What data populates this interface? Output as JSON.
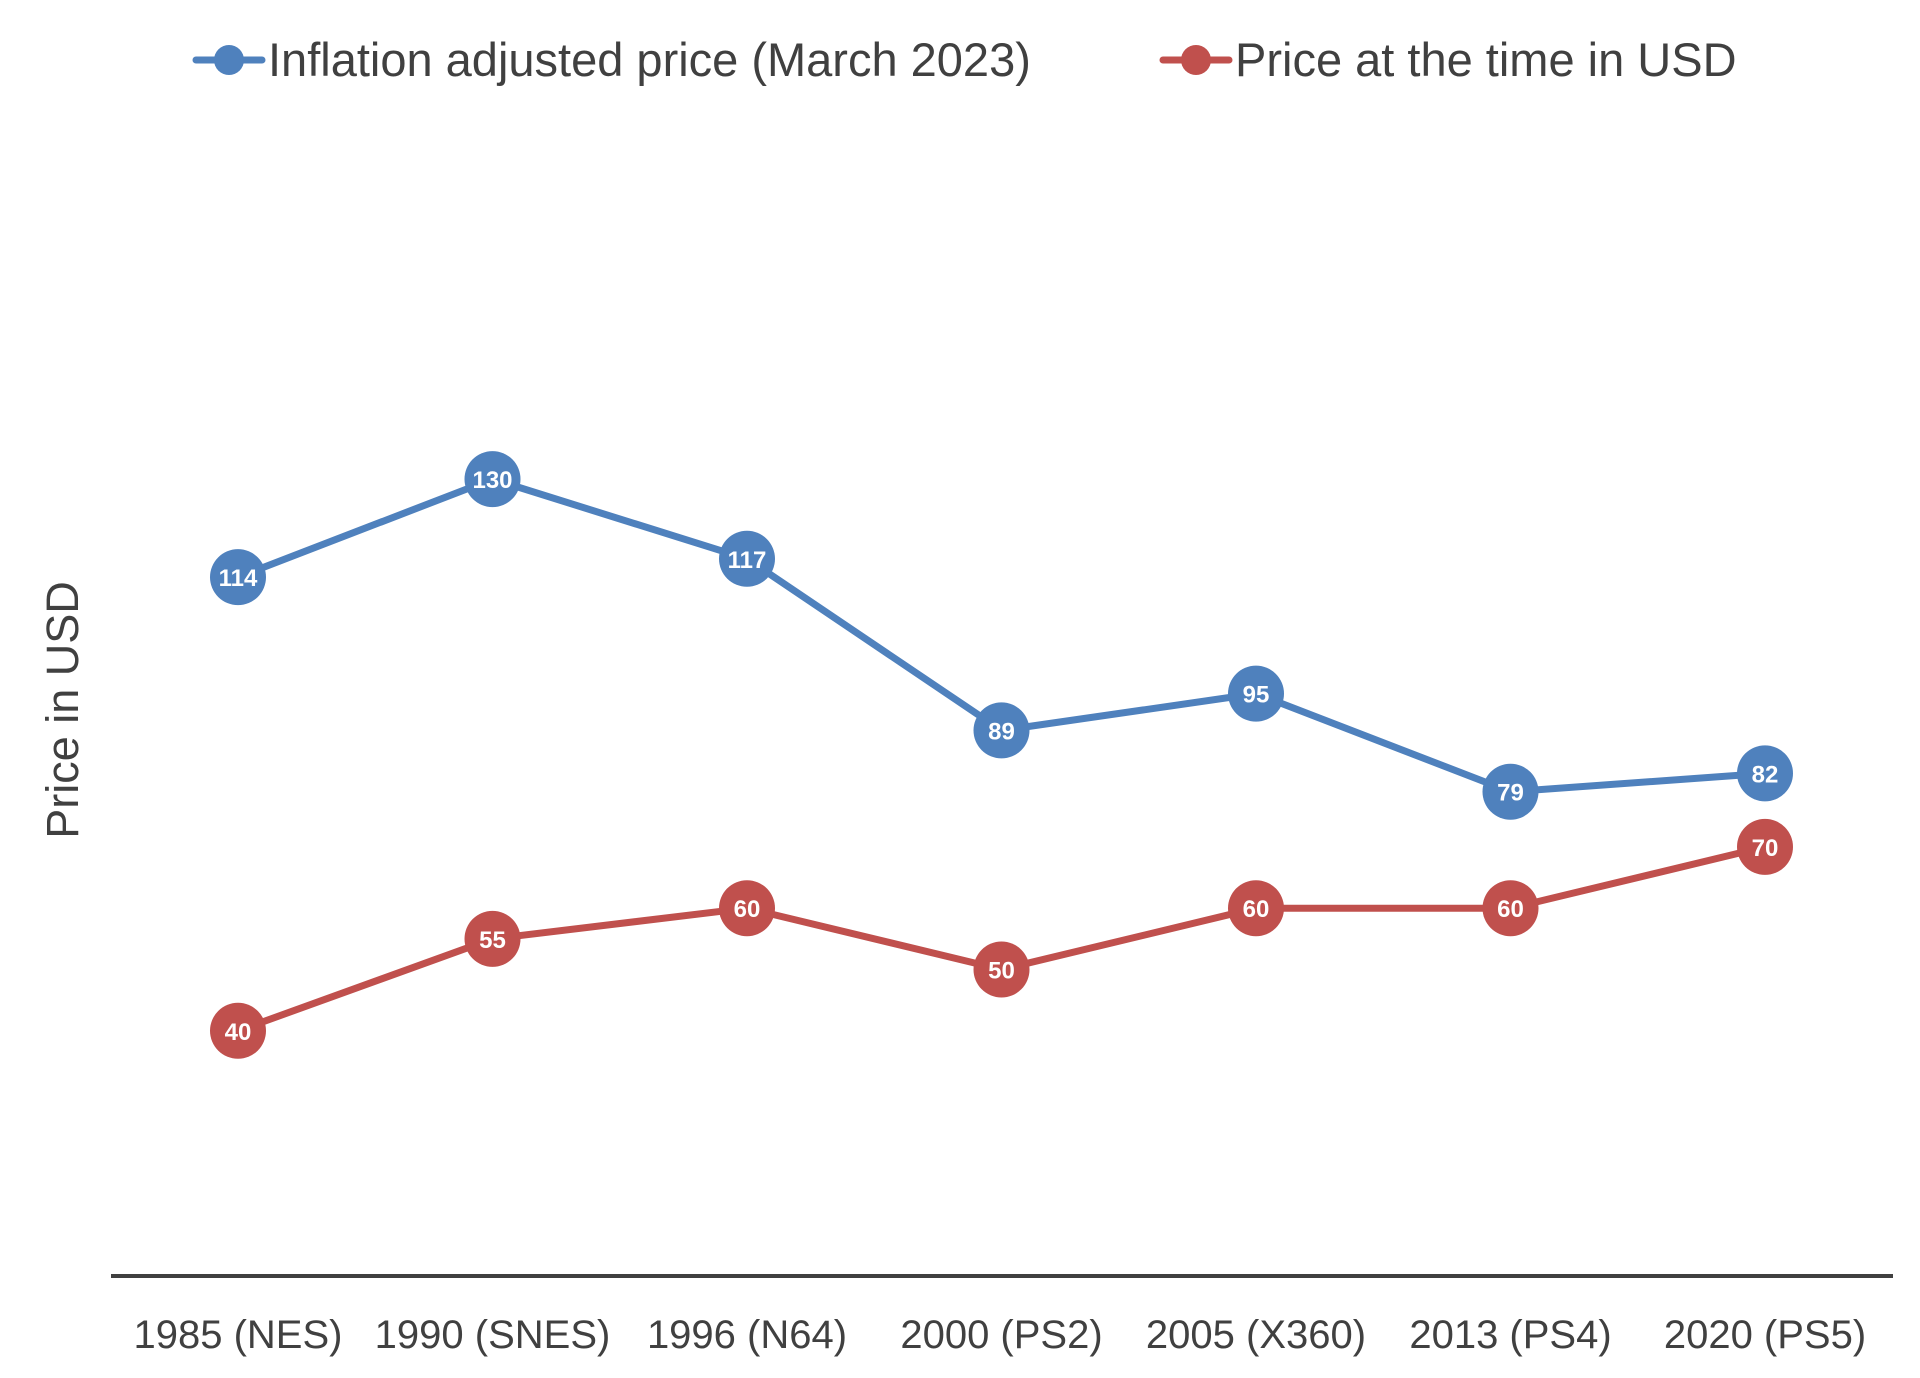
{
  "chart_data": {
    "type": "line",
    "title": "",
    "xlabel": "",
    "ylabel": "Price in USD",
    "categories": [
      "1985 (NES)",
      "1990 (SNES)",
      "1996 (N64)",
      "2000 (PS2)",
      "2005 (X360)",
      "2013 (PS4)",
      "2020 (PS5)"
    ],
    "series": [
      {
        "name": "Inflation adjusted price (March 2023)",
        "color": "#4F81BD",
        "values": [
          114,
          130,
          117,
          89,
          95,
          79,
          82
        ]
      },
      {
        "name": "Price at the time in USD",
        "color": "#C0504D",
        "values": [
          40,
          55,
          60,
          50,
          60,
          60,
          70
        ]
      }
    ],
    "ylim": [
      0,
      137
    ],
    "grid": false,
    "legend_position": "top",
    "data_labels": true,
    "axis_color": "#404040"
  }
}
